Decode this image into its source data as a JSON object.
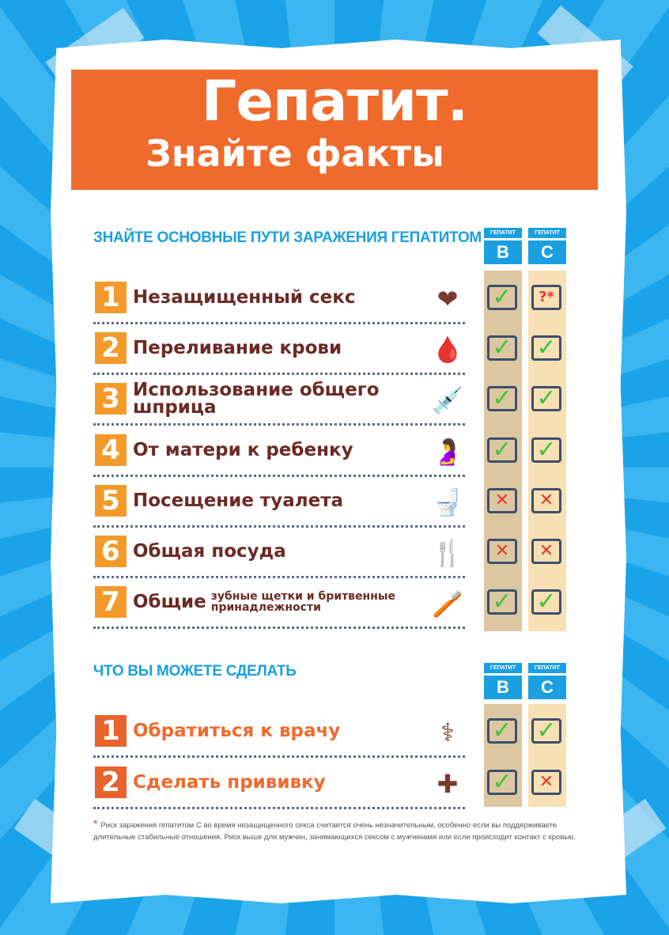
{
  "title_line1": "Гепатит.",
  "title_line2": "Знайте факты",
  "colors": {
    "header": "#f06a2c",
    "accent_blue": "#1aa0e0",
    "number_box": "#f39a2b",
    "number_box_2": "#e8622c",
    "text_brown": "#6b2a24",
    "text_orange": "#f06a2c",
    "col_b_bg": "#dcc7a0",
    "col_c_bg": "#f7e0b4"
  },
  "section1": {
    "title": "ЗНАЙТЕ ОСНОВНЫЕ ПУТИ ЗАРАЖЕНИЯ ГЕПАТИТОМ",
    "col_b": {
      "small": "ГЕПАТИТ",
      "letter": "B"
    },
    "col_c": {
      "small": "ГЕПАТИТ",
      "letter": "C"
    },
    "rows": [
      {
        "num": "1",
        "label": "Незащищенный секс",
        "icon": "hearts-icon",
        "b": "check",
        "c": "question"
      },
      {
        "num": "2",
        "label": "Переливание крови",
        "icon": "blood-bag-icon",
        "b": "check",
        "c": "check"
      },
      {
        "num": "3",
        "label": "Использование общего шприца",
        "icon": "syringe-icon",
        "b": "check",
        "c": "check"
      },
      {
        "num": "4",
        "label": "От матери к ребенку",
        "icon": "pregnant-woman-icon",
        "b": "check",
        "c": "check"
      },
      {
        "num": "5",
        "label": "Посещение туалета",
        "icon": "toilet-icon",
        "b": "cross",
        "c": "cross"
      },
      {
        "num": "6",
        "label": "Общая посуда",
        "icon": "utensils-icon",
        "b": "cross",
        "c": "cross"
      },
      {
        "num": "7",
        "label": "Общие",
        "label_small": "зубные щетки и бритвенные принадлежности",
        "icon": "toothbrush-razor-icon",
        "b": "check",
        "c": "check"
      }
    ]
  },
  "section2": {
    "title": "ЧТО ВЫ МОЖЕТЕ СДЕЛАТЬ",
    "col_b": {
      "small": "ГЕПАТИТ",
      "letter": "B"
    },
    "col_c": {
      "small": "ГЕПАТИТ",
      "letter": "C"
    },
    "rows": [
      {
        "num": "1",
        "label": "Обратиться к врачу",
        "icon": "doctor-icon",
        "b": "check",
        "c": "check"
      },
      {
        "num": "2",
        "label": "Сделать прививку",
        "icon": "medicine-bottle-icon",
        "b": "check",
        "c": "cross"
      }
    ]
  },
  "footnote": {
    "marker": "*",
    "text": "Риск заражения гепатитом С во время незащищенного секса считается очень незначительным, особенно если вы поддерживаете длительные стабильные отношения. Риск выше для мужчин, занимающихся сексом с мужчинами или если происходит контакт с кровью."
  }
}
